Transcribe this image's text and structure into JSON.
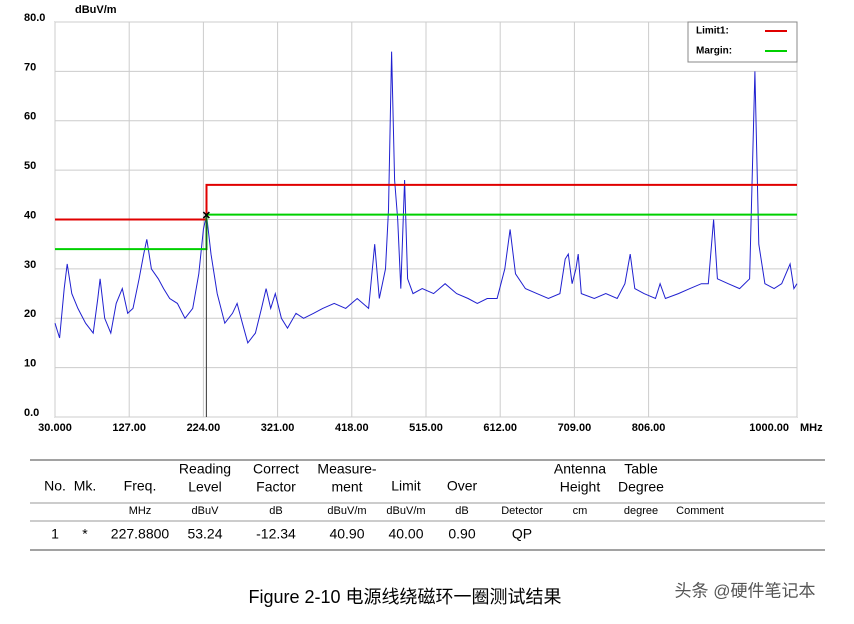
{
  "chart_data": {
    "type": "line",
    "ylabel": "dBuV/m",
    "xlabel": "MHz",
    "xlim": [
      30,
      1000
    ],
    "ylim": [
      0,
      80
    ],
    "xticks": [
      {
        "value": 30,
        "label": "30.000"
      },
      {
        "value": 127,
        "label": "127.00"
      },
      {
        "value": 224,
        "label": "224.00"
      },
      {
        "value": 321,
        "label": "321.00"
      },
      {
        "value": 418,
        "label": "418.00"
      },
      {
        "value": 515,
        "label": "515.00"
      },
      {
        "value": 612,
        "label": "612.00"
      },
      {
        "value": 709,
        "label": "709.00"
      },
      {
        "value": 806,
        "label": "806.00"
      },
      {
        "value": 1000,
        "label": "1000.00"
      }
    ],
    "yticks": [
      {
        "value": 0,
        "label": "0.0"
      },
      10,
      20,
      30,
      40,
      50,
      60,
      70,
      {
        "value": 80,
        "label": "80.0"
      }
    ],
    "grid": true,
    "legend": "top-right",
    "marker": {
      "x": 227.88,
      "y": 40.9
    },
    "series": [
      {
        "color": "#2020d0",
        "x": [
          30,
          36,
          42,
          46,
          52,
          60,
          70,
          80,
          86,
          89,
          95,
          103,
          110,
          118,
          125,
          132,
          140,
          146,
          150,
          156,
          165,
          172,
          180,
          190,
          200,
          210,
          218,
          224,
          228,
          234,
          242,
          252,
          262,
          268,
          275,
          282,
          292,
          300,
          306,
          312,
          318,
          326,
          334,
          345,
          355,
          368,
          380,
          395,
          410,
          425,
          440,
          448,
          454,
          462,
          466,
          470,
          474,
          478,
          482,
          487,
          491,
          498,
          510,
          525,
          540,
          555,
          570,
          582,
          595,
          608,
          618,
          625,
          632,
          645,
          660,
          675,
          690,
          697,
          701,
          706,
          711,
          714,
          718,
          735,
          750,
          765,
          775,
          782,
          788,
          800,
          815,
          821,
          828,
          845,
          860,
          875,
          884,
          891,
          896,
          910,
          925,
          938,
          945,
          950,
          958,
          970,
          980,
          991,
          996,
          1000
        ],
        "values": [
          19,
          16,
          26,
          31,
          25,
          22,
          19,
          17,
          24,
          28,
          20,
          17,
          23,
          26,
          21,
          22,
          28,
          33,
          36,
          30,
          28,
          26,
          24,
          23,
          20,
          22,
          29,
          38,
          41,
          33,
          25,
          19,
          21,
          23,
          19,
          15,
          17,
          22,
          26,
          22,
          25,
          20,
          18,
          21,
          20,
          21,
          22,
          23,
          22,
          24,
          22,
          35,
          24,
          30,
          42,
          74,
          48,
          40,
          26,
          48,
          28,
          25,
          26,
          25,
          27,
          25,
          24,
          23,
          24,
          24,
          30,
          38,
          29,
          26,
          25,
          24,
          25,
          32,
          33,
          27,
          30,
          33,
          25,
          24,
          25,
          24,
          27,
          33,
          26,
          25,
          24,
          27,
          24,
          25,
          26,
          27,
          27,
          40,
          28,
          27,
          26,
          28,
          70,
          35,
          27,
          26,
          27,
          31,
          26,
          27
        ]
      },
      {
        "name": "Limit1:",
        "color": "#e00000",
        "x": [
          30,
          228,
          228,
          1000
        ],
        "values": [
          40,
          40,
          47,
          47
        ]
      },
      {
        "name": "Margin:",
        "color": "#00d000",
        "x": [
          30,
          228,
          228,
          1000
        ],
        "values": [
          34,
          34,
          41,
          41
        ]
      }
    ]
  },
  "table": {
    "columns": [
      {
        "head": [
          "No."
        ],
        "value": "1"
      },
      {
        "head": [
          "Mk."
        ],
        "value": "*"
      },
      {
        "head": [
          "Freq."
        ],
        "unit": "MHz",
        "value": "227.8800"
      },
      {
        "head": [
          "Reading",
          "Level"
        ],
        "unit": "dBuV",
        "value": "53.24"
      },
      {
        "head": [
          "Correct",
          "Factor"
        ],
        "unit": "dB",
        "value": "-12.34"
      },
      {
        "head": [
          "Measure-",
          "ment"
        ],
        "unit": "dBuV/m",
        "value": "40.90"
      },
      {
        "head": [
          "Limit"
        ],
        "unit": "dBuV/m",
        "value": "40.00"
      },
      {
        "head": [
          "Over"
        ],
        "unit": "dB",
        "value": "0.90"
      },
      {
        "unit": "Detector",
        "value": "QP"
      },
      {
        "head": [
          "Antenna",
          "Height"
        ],
        "unit": "cm"
      },
      {
        "head": [
          "Table",
          "Degree"
        ],
        "unit": "degree"
      },
      {
        "unit": "Comment"
      }
    ]
  },
  "caption": "Figure 2-10  电源线绕磁环一圈测试结果",
  "watermark": "头条 @硬件笔记本"
}
